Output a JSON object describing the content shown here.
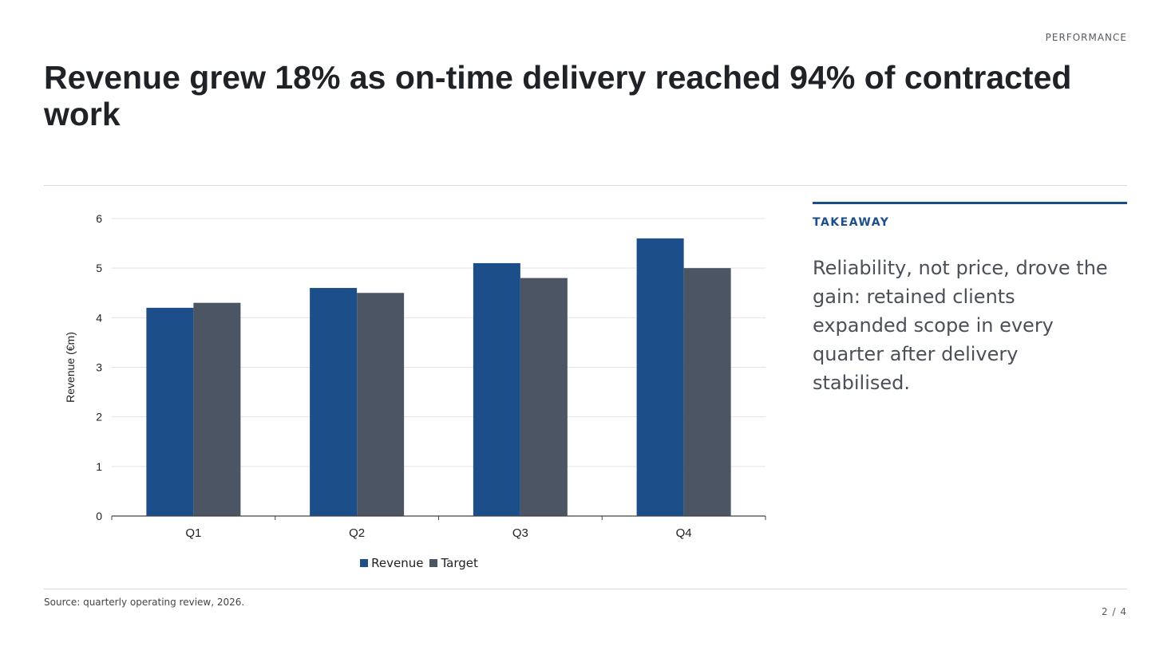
{
  "header": {
    "section": "PERFORMANCE",
    "title": "Revenue grew 18% as on-time delivery reached 94% of contracted work"
  },
  "takeaway": {
    "label": "TAKEAWAY",
    "text": "Reliability, not price, drove the gain: retained clients expanded scope in every quarter after delivery stabilised."
  },
  "footer": {
    "source": "Source: quarterly operating review, 2026.",
    "page": "2 / 4"
  },
  "colors": {
    "revenue": "#1c4f8a",
    "target": "#4b5563",
    "accent": "#1c4f8a"
  },
  "chart_data": {
    "type": "bar",
    "categories": [
      "Q1",
      "Q2",
      "Q3",
      "Q4"
    ],
    "series": [
      {
        "name": "Revenue",
        "values": [
          4.2,
          4.6,
          5.1,
          5.6
        ]
      },
      {
        "name": "Target",
        "values": [
          4.3,
          4.5,
          4.8,
          5.0
        ]
      }
    ],
    "ylabel": "Revenue (€m)",
    "ylim": [
      0,
      6
    ],
    "yticks": [
      "0",
      "1",
      "2",
      "3",
      "4",
      "5",
      "6"
    ],
    "grid": true,
    "legend": "bottom"
  }
}
